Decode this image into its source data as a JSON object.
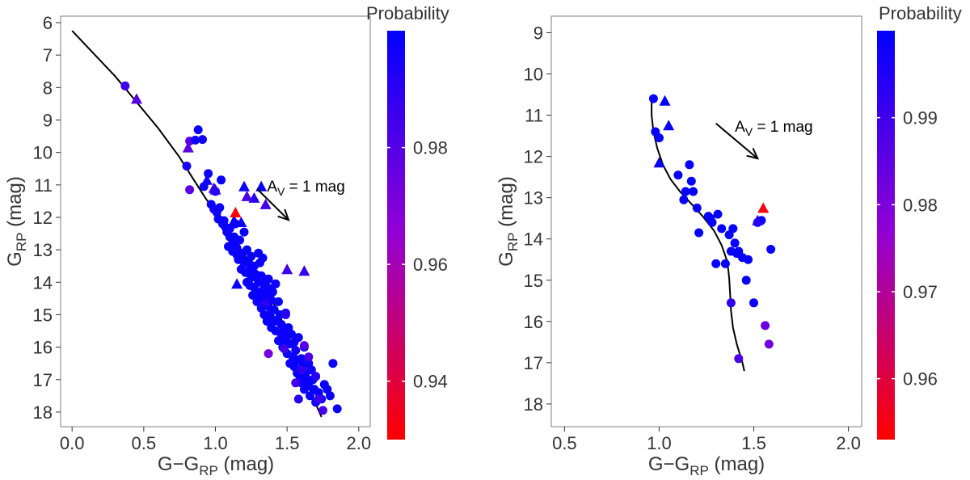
{
  "chart_data": [
    {
      "type": "scatter",
      "panel": "left",
      "xlabel_main": "G−G",
      "xlabel_sub": "RP",
      "xlabel_unit": " (mag)",
      "ylabel_main": "G",
      "ylabel_sub": "RP",
      "ylabel_unit": " (mag)",
      "xlim": [
        -0.08,
        2.08
      ],
      "ylim": [
        5.8,
        18.45
      ],
      "y_reversed": true,
      "xticks": [
        0.0,
        0.5,
        1.0,
        1.5,
        2.0
      ],
      "xtick_labels": [
        "0.0",
        "0.5",
        "1.0",
        "1.5",
        "2.0"
      ],
      "yticks": [
        6,
        7,
        8,
        9,
        10,
        11,
        12,
        13,
        14,
        15,
        16,
        17,
        18
      ],
      "ytick_labels": [
        "6",
        "7",
        "8",
        "9",
        "10",
        "11",
        "12",
        "13",
        "14",
        "15",
        "16",
        "17",
        "18"
      ],
      "colorbar": {
        "title": "Probability",
        "min": 0.93,
        "max": 1.0,
        "ticks": [
          0.94,
          0.96,
          0.98
        ],
        "tick_labels": [
          "0.94",
          "0.96",
          "0.98"
        ],
        "low_color": "#ff0000",
        "mid_color": "#9400d3",
        "high_color": "#0000ff"
      },
      "arrow": {
        "label_main": "A",
        "label_sub": "V",
        "label_rest": " = 1 mag",
        "from": [
          1.29,
          11.12
        ],
        "to": [
          1.51,
          12.08
        ],
        "label_at": [
          1.36,
          11.2
        ]
      },
      "isochrone": {
        "x": [
          0.0,
          0.15,
          0.3,
          0.45,
          0.6,
          0.75,
          0.85,
          0.93,
          1.0,
          1.05,
          1.1,
          1.15,
          1.2,
          1.25,
          1.3,
          1.35,
          1.4,
          1.45,
          1.5,
          1.55,
          1.6,
          1.65,
          1.7,
          1.74
        ],
        "y": [
          6.25,
          6.95,
          7.65,
          8.45,
          9.25,
          10.15,
          10.85,
          11.4,
          11.85,
          12.15,
          12.45,
          12.8,
          13.15,
          13.45,
          13.8,
          14.2,
          14.6,
          15.05,
          15.55,
          16.1,
          16.65,
          17.2,
          17.75,
          18.15
        ]
      },
      "members_circle": {
        "x": [
          0.37,
          0.8,
          0.82,
          0.86,
          0.88,
          0.91,
          0.92,
          0.95,
          0.97,
          0.99,
          1.0,
          1.01,
          1.02,
          1.03,
          1.04,
          1.05,
          1.06,
          1.07,
          1.08,
          1.09,
          1.1,
          1.1,
          1.12,
          1.12,
          1.13,
          1.14,
          1.15,
          1.15,
          1.16,
          1.17,
          1.18,
          1.18,
          1.19,
          1.2,
          1.2,
          1.21,
          1.22,
          1.22,
          1.23,
          1.24,
          1.24,
          1.25,
          1.25,
          1.26,
          1.27,
          1.27,
          1.28,
          1.28,
          1.29,
          1.3,
          1.3,
          1.31,
          1.31,
          1.32,
          1.32,
          1.33,
          1.33,
          1.34,
          1.34,
          1.35,
          1.35,
          1.36,
          1.36,
          1.37,
          1.37,
          1.38,
          1.38,
          1.39,
          1.39,
          1.4,
          1.4,
          1.41,
          1.42,
          1.42,
          1.43,
          1.44,
          1.44,
          1.45,
          1.46,
          1.46,
          1.47,
          1.48,
          1.48,
          1.49,
          1.5,
          1.5,
          1.51,
          1.52,
          1.52,
          1.53,
          1.54,
          1.55,
          1.55,
          1.56,
          1.57,
          1.57,
          1.58,
          1.59,
          1.6,
          1.6,
          1.61,
          1.62,
          1.62,
          1.63,
          1.64,
          1.65,
          1.65,
          1.66,
          1.67,
          1.68,
          1.69,
          1.7,
          1.7,
          1.72,
          1.74,
          1.76,
          1.78,
          1.8,
          1.82,
          1.85,
          0.82,
          1.37,
          1.49,
          1.56,
          1.6,
          1.62,
          1.65,
          1.72,
          1.75,
          1.7,
          1.58,
          1.48,
          1.35
        ],
        "y": [
          7.95,
          10.42,
          9.65,
          9.62,
          9.3,
          9.6,
          11.05,
          10.65,
          11.6,
          11.75,
          11.2,
          11.85,
          12.05,
          11.7,
          10.85,
          12.2,
          12.1,
          12.3,
          12.45,
          12.9,
          12.6,
          12.35,
          12.8,
          13.05,
          12.6,
          12.2,
          12.95,
          13.15,
          13.3,
          12.7,
          13.25,
          13.6,
          13.1,
          12.45,
          13.4,
          13.7,
          13.0,
          14.0,
          13.35,
          13.6,
          14.1,
          13.2,
          13.85,
          14.4,
          13.5,
          14.15,
          13.75,
          14.3,
          14.6,
          13.1,
          14.0,
          13.4,
          14.45,
          13.8,
          14.8,
          13.25,
          14.25,
          13.9,
          15.0,
          14.1,
          14.6,
          14.35,
          15.2,
          13.9,
          14.75,
          14.2,
          15.0,
          14.55,
          15.4,
          14.3,
          15.15,
          14.85,
          14.05,
          15.5,
          15.2,
          14.6,
          15.8,
          15.0,
          15.6,
          15.3,
          16.0,
          15.45,
          15.8,
          14.95,
          15.65,
          16.2,
          15.4,
          16.5,
          15.9,
          15.6,
          16.3,
          15.85,
          16.6,
          16.1,
          16.4,
          16.8,
          15.7,
          16.9,
          16.35,
          17.1,
          16.6,
          16.0,
          17.3,
          16.8,
          17.0,
          16.5,
          17.2,
          17.5,
          16.7,
          17.0,
          17.3,
          17.7,
          16.9,
          17.4,
          17.6,
          17.15,
          17.3,
          17.5,
          16.5,
          17.9,
          11.15,
          16.2,
          15.0,
          17.1,
          16.7,
          15.95,
          16.3,
          17.6,
          17.95,
          16.9,
          17.6,
          16.05,
          14.65
        ],
        "p": [
          0.985,
          0.995,
          0.978,
          0.997,
          0.998,
          0.996,
          0.997,
          0.998,
          0.998,
          0.997,
          0.998,
          0.996,
          0.998,
          0.997,
          0.998,
          0.997,
          0.998,
          0.998,
          0.997,
          0.998,
          0.998,
          0.997,
          0.998,
          0.997,
          0.998,
          0.998,
          0.997,
          0.998,
          0.998,
          0.997,
          0.998,
          0.997,
          0.998,
          0.998,
          0.997,
          0.998,
          0.998,
          0.997,
          0.998,
          0.998,
          0.997,
          0.998,
          0.998,
          0.997,
          0.998,
          0.997,
          0.998,
          0.998,
          0.997,
          0.998,
          0.998,
          0.997,
          0.998,
          0.998,
          0.997,
          0.998,
          0.998,
          0.997,
          0.998,
          0.998,
          0.997,
          0.998,
          0.998,
          0.997,
          0.998,
          0.998,
          0.997,
          0.998,
          0.998,
          0.997,
          0.998,
          0.998,
          0.997,
          0.998,
          0.998,
          0.997,
          0.998,
          0.998,
          0.997,
          0.998,
          0.998,
          0.997,
          0.998,
          0.998,
          0.997,
          0.998,
          0.998,
          0.997,
          0.998,
          0.998,
          0.997,
          0.998,
          0.998,
          0.997,
          0.998,
          0.998,
          0.997,
          0.998,
          0.998,
          0.997,
          0.998,
          0.998,
          0.997,
          0.998,
          0.998,
          0.997,
          0.998,
          0.998,
          0.997,
          0.998,
          0.998,
          0.997,
          0.998,
          0.998,
          0.997,
          0.998,
          0.998,
          0.997,
          0.998,
          0.998,
          0.978,
          0.972,
          0.99,
          0.985,
          0.988,
          0.98,
          0.982,
          0.986,
          0.984,
          0.99,
          0.992,
          0.985,
          0.99
        ]
      },
      "members_triangle": {
        "x": [
          0.45,
          0.81,
          0.94,
          0.99,
          1.0,
          1.13,
          1.14,
          1.15,
          1.18,
          1.2,
          1.22,
          1.27,
          1.35,
          1.5,
          1.62,
          1.32
        ],
        "y": [
          8.35,
          9.85,
          10.85,
          11.1,
          11.15,
          12.1,
          11.85,
          14.05,
          12.15,
          11.05,
          11.35,
          11.4,
          11.6,
          13.6,
          13.65,
          11.05
        ],
        "p": [
          0.98,
          0.978,
          0.995,
          0.985,
          0.99,
          0.998,
          0.93,
          0.998,
          0.997,
          0.998,
          0.982,
          0.99,
          0.984,
          0.985,
          0.988,
          0.998
        ]
      }
    },
    {
      "type": "scatter",
      "panel": "right",
      "xlabel_main": "G−G",
      "xlabel_sub": "RP",
      "xlabel_unit": " (mag)",
      "ylabel_main": "G",
      "ylabel_sub": "RP",
      "ylabel_unit": " (mag)",
      "xlim": [
        0.43,
        2.07
      ],
      "ylim": [
        8.6,
        18.55
      ],
      "y_reversed": true,
      "xticks": [
        0.5,
        1.0,
        1.5,
        2.0
      ],
      "xtick_labels": [
        "0.5",
        "1.0",
        "1.5",
        "2.0"
      ],
      "yticks": [
        9,
        10,
        11,
        12,
        13,
        14,
        15,
        16,
        17,
        18
      ],
      "ytick_labels": [
        "9",
        "10",
        "11",
        "12",
        "13",
        "14",
        "15",
        "16",
        "17",
        "18"
      ],
      "colorbar": {
        "title": "Probability",
        "min": 0.953,
        "max": 1.0,
        "ticks": [
          0.96,
          0.97,
          0.98,
          0.99
        ],
        "tick_labels": [
          "0.96",
          "0.97",
          "0.98",
          "0.99"
        ],
        "low_color": "#ff0000",
        "mid_color": "#9400d3",
        "high_color": "#0000ff"
      },
      "arrow": {
        "label_main": "A",
        "label_sub": "V",
        "label_rest": " = 1 mag",
        "from": [
          1.3,
          11.2
        ],
        "to": [
          1.52,
          12.05
        ],
        "label_at": [
          1.4,
          11.4
        ]
      },
      "isochrone": {
        "x": [
          0.96,
          0.96,
          0.97,
          0.99,
          1.02,
          1.06,
          1.11,
          1.17,
          1.23,
          1.29,
          1.33,
          1.36,
          1.37,
          1.375,
          1.38,
          1.39,
          1.41,
          1.44,
          1.45
        ],
        "y": [
          10.6,
          11.0,
          11.4,
          11.8,
          12.2,
          12.55,
          12.85,
          13.15,
          13.45,
          13.8,
          14.15,
          14.55,
          14.95,
          15.35,
          15.75,
          16.15,
          16.55,
          17.0,
          17.2
        ]
      },
      "members_circle": {
        "x": [
          0.97,
          0.98,
          1.0,
          1.1,
          1.13,
          1.14,
          1.16,
          1.17,
          1.18,
          1.2,
          1.21,
          1.26,
          1.27,
          1.28,
          1.3,
          1.31,
          1.33,
          1.35,
          1.37,
          1.38,
          1.39,
          1.41,
          1.42,
          1.44,
          1.46,
          1.47,
          1.5,
          1.54,
          1.56,
          1.58,
          1.59,
          1.4,
          1.52,
          1.38,
          1.42
        ],
        "y": [
          10.6,
          11.4,
          11.55,
          12.45,
          13.05,
          12.85,
          12.2,
          12.6,
          12.85,
          13.25,
          13.85,
          13.45,
          13.5,
          13.6,
          14.6,
          13.4,
          13.75,
          14.6,
          13.9,
          14.3,
          13.75,
          14.35,
          14.3,
          14.45,
          15.0,
          14.5,
          15.55,
          13.55,
          16.1,
          16.55,
          14.25,
          14.1,
          13.6,
          15.55,
          16.9
        ],
        "p": [
          0.999,
          0.999,
          0.999,
          0.999,
          0.999,
          0.999,
          0.999,
          0.999,
          0.999,
          0.999,
          0.999,
          0.999,
          0.999,
          0.999,
          0.999,
          0.999,
          0.999,
          0.999,
          0.999,
          0.999,
          0.999,
          0.999,
          0.999,
          0.999,
          0.999,
          0.999,
          0.998,
          0.999,
          0.983,
          0.982,
          0.999,
          0.999,
          0.999,
          0.992,
          0.988
        ]
      },
      "members_triangle": {
        "x": [
          1.03,
          1.05,
          1.0,
          1.52,
          1.55
        ],
        "y": [
          10.65,
          11.25,
          12.15,
          13.55,
          13.25
        ],
        "p": [
          0.999,
          0.999,
          0.999,
          0.994,
          0.955
        ]
      }
    }
  ]
}
